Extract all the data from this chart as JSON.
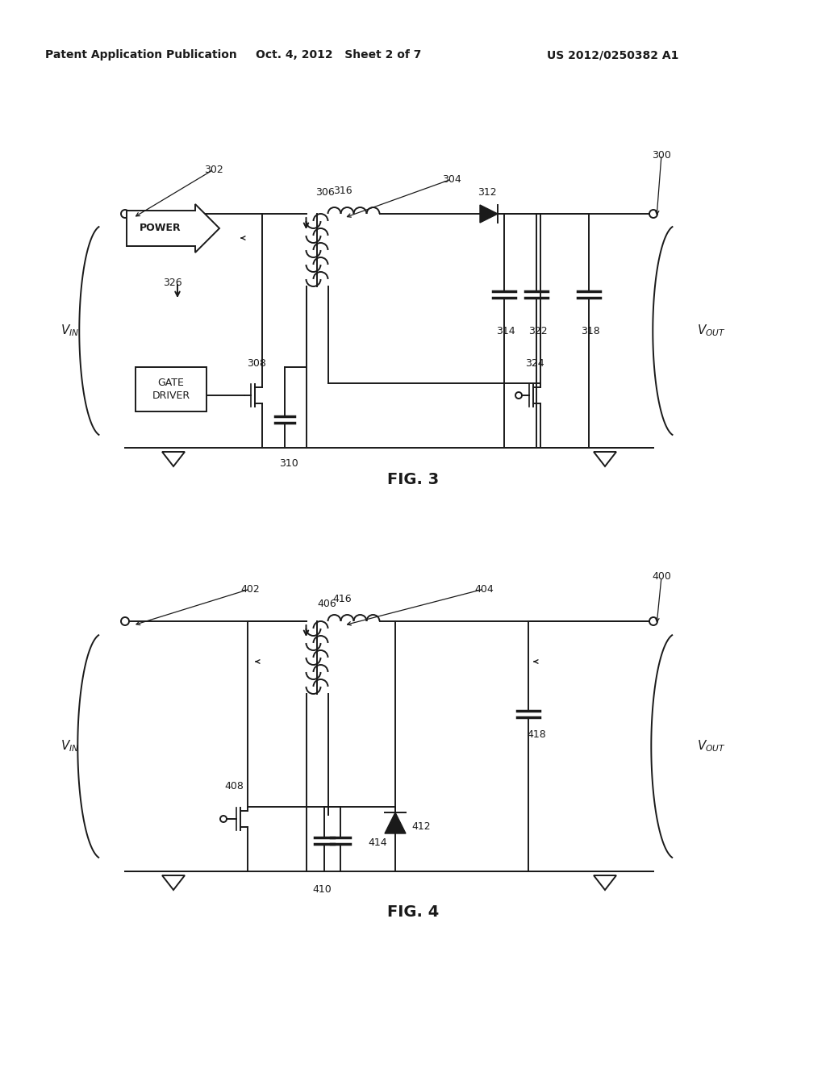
{
  "bg_color": "#ffffff",
  "header_left": "Patent Application Publication",
  "header_mid": "Oct. 4, 2012   Sheet 2 of 7",
  "header_right": "US 2012/0250382 A1",
  "fig3_label": "FIG. 3",
  "fig4_label": "FIG. 4",
  "lc": "#1a1a1a",
  "tc": "#1a1a1a",
  "lw": 1.4
}
